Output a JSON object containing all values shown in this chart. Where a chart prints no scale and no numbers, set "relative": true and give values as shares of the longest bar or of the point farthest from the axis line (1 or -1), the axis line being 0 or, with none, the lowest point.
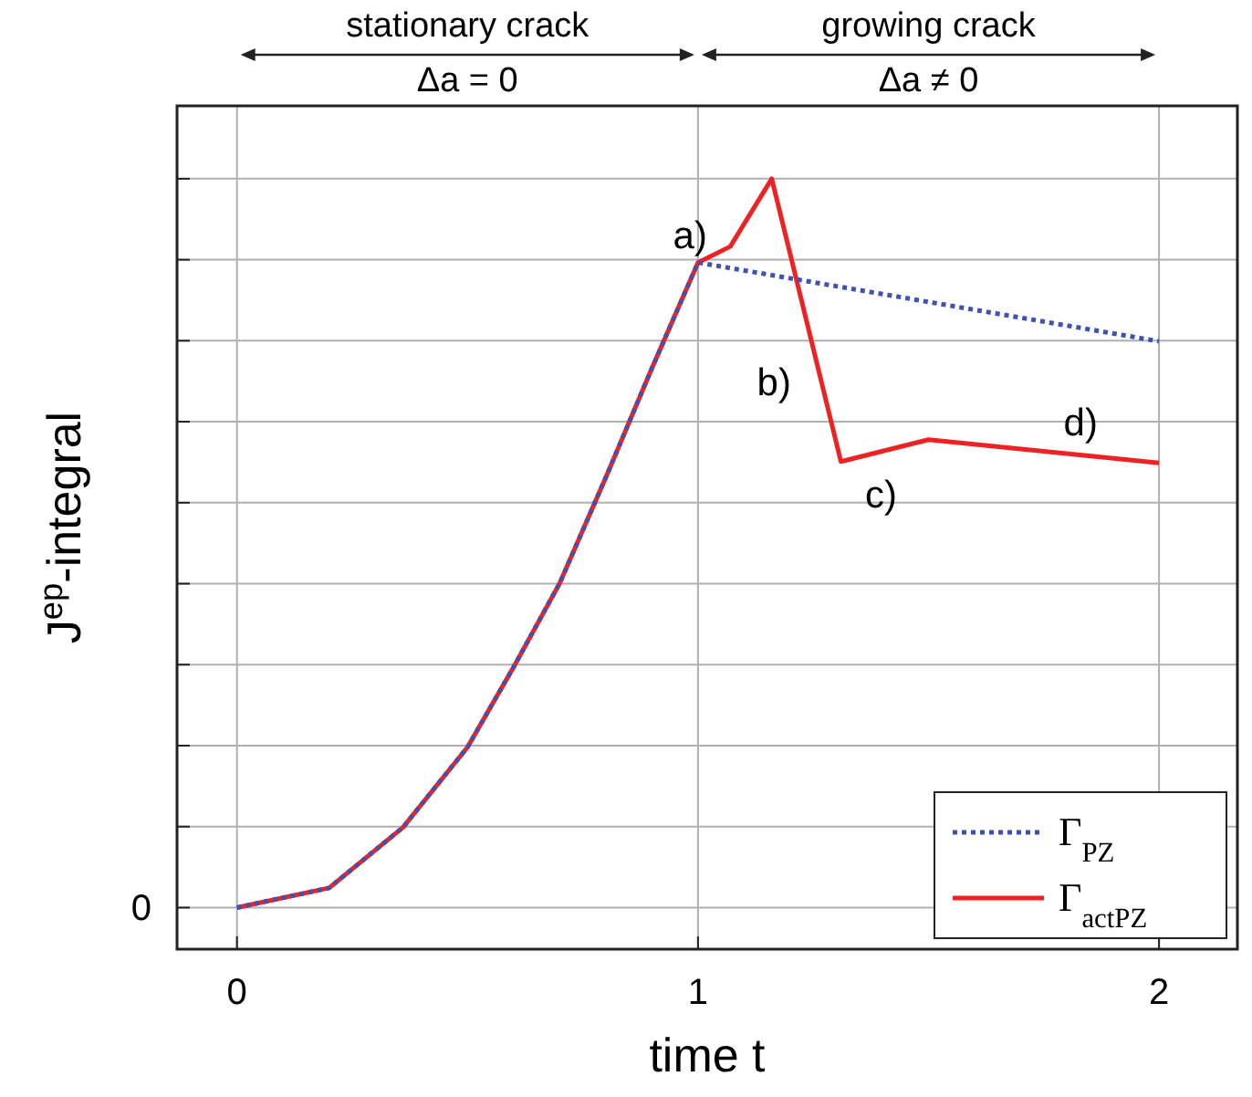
{
  "chart_data": {
    "type": "line",
    "relative": true,
    "xlabel": "time t",
    "ylabel": "J$^{ep}$-integral",
    "xlim": [
      -0.13,
      2.17
    ],
    "xticks": [
      0,
      1,
      2
    ],
    "grid": true,
    "legend": "bottom right",
    "line_style": "solid",
    "series": [
      {
        "name": "Γ$_{PZ}$",
        "color": "#3f51b5",
        "line_style": "dotted",
        "x": [
          0,
          0.2,
          0.36,
          0.5,
          0.6,
          0.7,
          0.8,
          0.9,
          1,
          2
        ],
        "values": [
          0,
          0.027,
          0.11,
          0.22,
          0.33,
          0.445,
          0.59,
          0.74,
          0.885,
          0.777
        ]
      },
      {
        "name": "Γ$_{actPZ}$",
        "color": "#ee2222",
        "x": [
          0,
          0.2,
          0.36,
          0.5,
          0.6,
          0.7,
          0.8,
          0.9,
          1,
          1.07,
          1.16,
          1.31,
          1.5,
          2
        ],
        "values": [
          0,
          0.027,
          0.11,
          0.22,
          0.33,
          0.445,
          0.59,
          0.74,
          0.885,
          0.907,
          1.0,
          0.612,
          0.642,
          0.61
        ]
      }
    ],
    "annotations": [
      "stationary crack",
      "Δa = 0",
      "growing crack",
      "Δa ≠ 0",
      "0",
      {
        "text": "a)",
        "x": 1.07,
        "y": 0.907
      },
      {
        "text": "b)",
        "x": 1.268,
        "y": 0.72
      },
      {
        "text": "c)",
        "x": 1.31,
        "y": 0.612
      },
      {
        "text": "d)",
        "x": 1.83,
        "y": 0.62
      }
    ]
  }
}
